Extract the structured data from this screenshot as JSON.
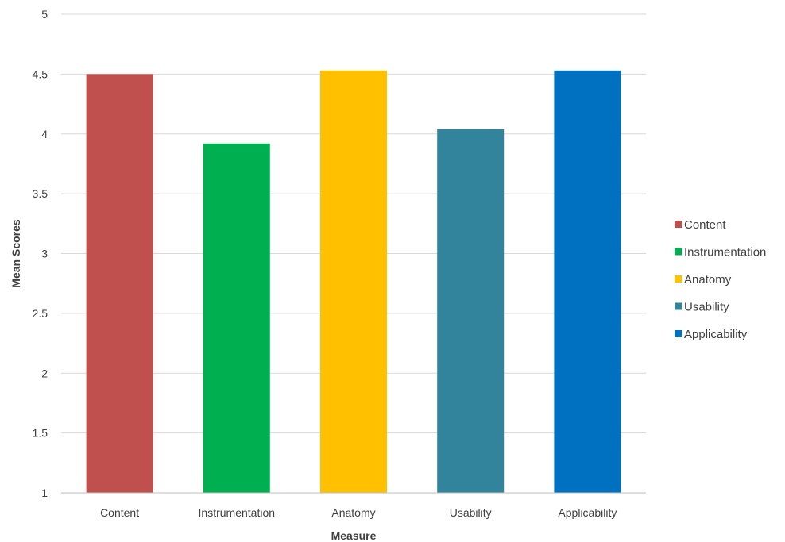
{
  "chart_data": {
    "type": "bar",
    "title": "",
    "xlabel": "Measure",
    "ylabel": "Mean Scores",
    "ylim": [
      1,
      5
    ],
    "yticks": [
      1,
      1.5,
      2,
      2.5,
      3,
      3.5,
      4,
      4.5,
      5
    ],
    "ytick_labels": [
      "1",
      "1.5",
      "2",
      "2.5",
      "3",
      "3.5",
      "4",
      "4.5",
      "5"
    ],
    "grid": true,
    "legend_position": "right",
    "categories": [
      "Content",
      "Instrumentation",
      "Anatomy",
      "Usability",
      "Applicability"
    ],
    "values": [
      4.5,
      3.92,
      4.53,
      4.04,
      4.53
    ],
    "colors": [
      "#c0504d",
      "#00b050",
      "#ffc000",
      "#31849b",
      "#0070c0"
    ],
    "legend": [
      "Content",
      "Instrumentation",
      "Anatomy",
      "Usability",
      "Applicability"
    ]
  }
}
